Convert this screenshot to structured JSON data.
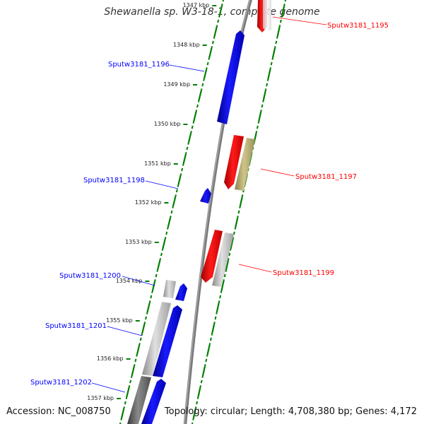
{
  "title": "Shewanella sp. W3-18-1, complete genome",
  "accession_text": "Accession: NC_008750",
  "topology_text": "Topology: circular; Length: 4,708,380 bp; Genes: 4,172",
  "colors": {
    "backbone": "#808080",
    "forward_strand": "#0000ff",
    "reverse_strand": "#ff0000",
    "ruler_ticks": "#008000",
    "other_feature_olive": "#b5ab66",
    "other_feature_gray": "#b4b4b4"
  },
  "kbp_ticks": [
    "1347 kbp",
    "1348 kbp",
    "1349 kbp",
    "1350 kbp",
    "1351 kbp",
    "1352 kbp",
    "1353 kbp",
    "1354 kbp",
    "1355 kbp",
    "1356 kbp",
    "1357 kbp"
  ],
  "genes_right": [
    "Sputw3181_1195",
    "Sputw3181_1197",
    "Sputw3181_1199"
  ],
  "genes_left": [
    "Sputw3181_1196",
    "Sputw3181_1198",
    "Sputw3181_1200",
    "Sputw3181_1201",
    "Sputw3181_1202"
  ]
}
